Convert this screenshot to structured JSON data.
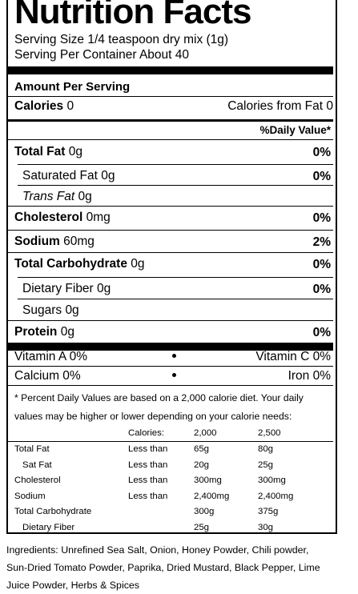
{
  "title": "Nutrition Facts",
  "serving": {
    "size": "Serving Size 1/4 teaspoon dry mix (1g)",
    "per_container": "Serving Per Container About 40"
  },
  "amount_per_serving": "Amount Per Serving",
  "calories": {
    "label": "Calories",
    "value": "0",
    "from_fat": "Calories from Fat 0"
  },
  "daily_value_header": "%Daily Value*",
  "nutrients": [
    {
      "label": "Total Fat",
      "amount": "0g",
      "dv": "0%"
    },
    {
      "label": "Saturated Fat",
      "amount": "0g",
      "dv": "0%"
    },
    {
      "label": "Trans Fat",
      "amount": "0g",
      "dv": ""
    },
    {
      "label": "Cholesterol",
      "amount": "0mg",
      "dv": "0%"
    },
    {
      "label": "Sodium",
      "amount": "60mg",
      "dv": "2%"
    },
    {
      "label": "Total Carbohydrate",
      "amount": "0g",
      "dv": "0%"
    },
    {
      "label": "Dietary Fiber",
      "amount": "0g",
      "dv": "0%"
    },
    {
      "label": "Sugars",
      "amount": "0g",
      "dv": ""
    },
    {
      "label": "Protein",
      "amount": "0g",
      "dv": "0%"
    }
  ],
  "vitamins": [
    {
      "left": "Vitamin A 0%",
      "right": "Vitamin C 0%"
    },
    {
      "left": "Calcium 0%",
      "right": "Iron 0%"
    }
  ],
  "footnote": [
    "* Percent Daily Values are based on a 2,000 calorie diet. Your daily",
    "values may be higher or lower depending on your calorie needs:"
  ],
  "dv_table": {
    "headers": [
      "Calories:",
      "2,000",
      "2,500"
    ],
    "rows": [
      {
        "label": "Total Fat",
        "cond": "Less than",
        "v2000": "65g",
        "v2500": "80g"
      },
      {
        "label": "Sat Fat",
        "cond": "Less than",
        "v2000": "20g",
        "v2500": "25g"
      },
      {
        "label": "Cholesterol",
        "cond": "Less than",
        "v2000": "300mg",
        "v2500": "300mg"
      },
      {
        "label": "Sodium",
        "cond": "Less than",
        "v2000": "2,400mg",
        "v2500": "2,400mg"
      },
      {
        "label": "Total Carbohydrate",
        "cond": "",
        "v2000": "300g",
        "v2500": "375g"
      },
      {
        "label": "Dietary Fiber",
        "cond": "",
        "v2000": "25g",
        "v2500": "30g"
      }
    ]
  },
  "ingredients": [
    "Ingredients: Unrefined Sea Salt, Onion, Honey Powder, Chili powder,",
    "Sun-Dried Tomato Powder, Paprika, Dried Mustard, Black Pepper, Lime",
    "Juice Powder, Herbs & Spices"
  ]
}
